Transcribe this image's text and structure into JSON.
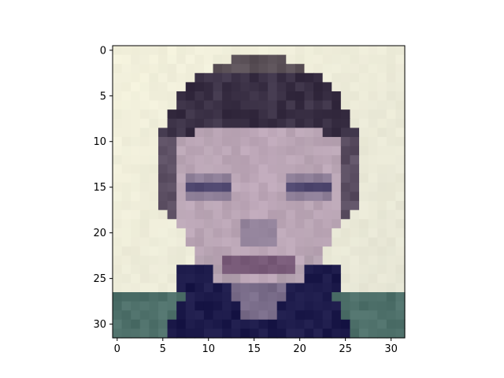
{
  "image": {
    "description_hidden": "",
    "grid_size": [
      32,
      32
    ]
  },
  "axes": {
    "x_ticks": [
      "0",
      "5",
      "10",
      "15",
      "20",
      "25",
      "30"
    ],
    "y_ticks": [
      "0",
      "5",
      "10",
      "15",
      "20",
      "25",
      "30"
    ],
    "xlim": [
      -0.5,
      31.5
    ],
    "ylim": [
      31.5,
      -0.5
    ],
    "grid": false
  },
  "colors": {
    "background": "#f3f1dc",
    "hair": "#3a3045",
    "skin": "#b9a5b4",
    "shirt": "#1c1a4a",
    "shoulder": "#4e706a"
  }
}
